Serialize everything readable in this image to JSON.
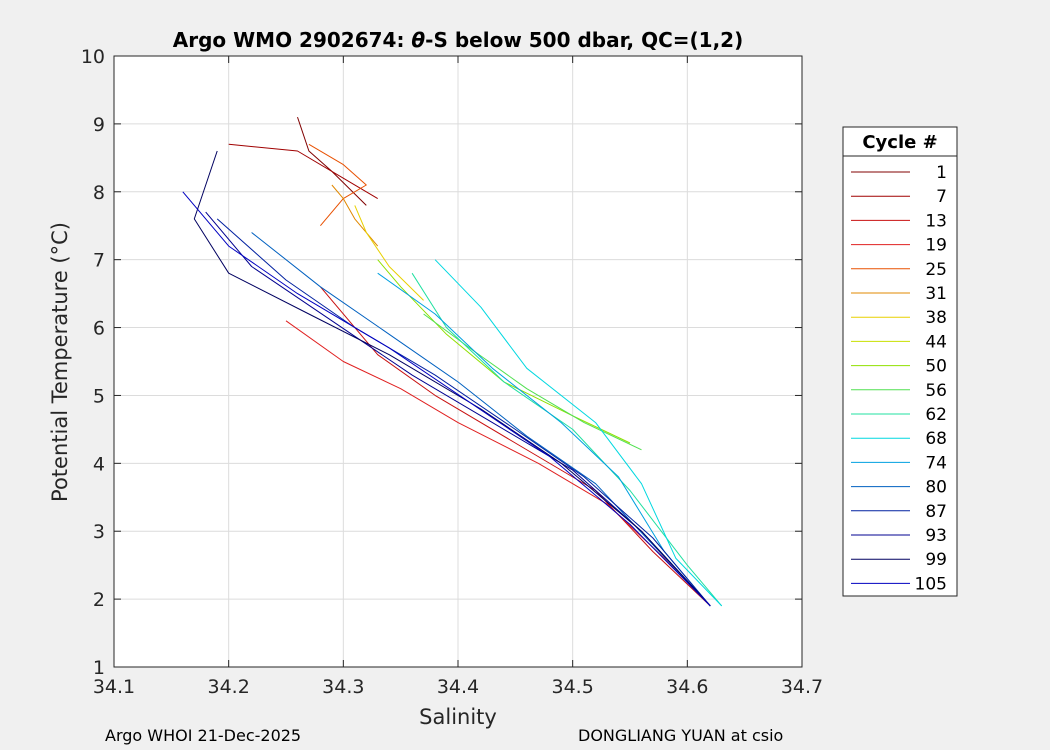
{
  "chart_data": {
    "type": "line",
    "title": "Argo WMO 2902674: θ-S below 500 dbar,  QC=(1,2)",
    "title_prefix": "Argo WMO 2902674: ",
    "title_theta": "θ",
    "title_suffix": "-S below 500 dbar,  QC=(1,2)",
    "xlabel": "Salinity",
    "ylabel": "Potential Temperature (°C)",
    "xlim": [
      34.1,
      34.7
    ],
    "ylim": [
      1,
      10
    ],
    "xticks": [
      "34.1",
      "34.2",
      "34.3",
      "34.4",
      "34.5",
      "34.6",
      "34.7"
    ],
    "yticks": [
      "1",
      "2",
      "3",
      "4",
      "5",
      "6",
      "7",
      "8",
      "9",
      "10"
    ],
    "grid": true,
    "legend_title": "Cycle #",
    "legend_position": "outside-right",
    "series": [
      {
        "name": "1",
        "color": "#800000"
      },
      {
        "name": "7",
        "color": "#a00000"
      },
      {
        "name": "13",
        "color": "#c81010"
      },
      {
        "name": "19",
        "color": "#e02020"
      },
      {
        "name": "25",
        "color": "#e85000"
      },
      {
        "name": "31",
        "color": "#e08800"
      },
      {
        "name": "38",
        "color": "#e8d000"
      },
      {
        "name": "44",
        "color": "#c8e000"
      },
      {
        "name": "50",
        "color": "#90e000"
      },
      {
        "name": "56",
        "color": "#50e050"
      },
      {
        "name": "62",
        "color": "#20e0a0"
      },
      {
        "name": "68",
        "color": "#00d8e0"
      },
      {
        "name": "74",
        "color": "#00a0e0"
      },
      {
        "name": "80",
        "color": "#0060c0"
      },
      {
        "name": "87",
        "color": "#0020a0"
      },
      {
        "name": "93",
        "color": "#000090"
      },
      {
        "name": "99",
        "color": "#000060"
      },
      {
        "name": "105",
        "color": "#0000c0"
      }
    ],
    "curves": [
      {
        "color": "#800000",
        "x": [
          34.32,
          34.29,
          34.27,
          34.26
        ],
        "y": [
          7.8,
          8.3,
          8.6,
          9.1
        ]
      },
      {
        "color": "#c81010",
        "x": [
          34.62,
          34.57,
          34.52,
          34.45,
          34.38,
          34.33,
          34.28
        ],
        "y": [
          1.9,
          2.7,
          3.6,
          4.3,
          5.0,
          5.6,
          6.6
        ]
      },
      {
        "color": "#e02020",
        "x": [
          34.62,
          34.58,
          34.53,
          34.47,
          34.4,
          34.35,
          34.3,
          34.25
        ],
        "y": [
          1.9,
          2.6,
          3.4,
          4.0,
          4.6,
          5.1,
          5.5,
          6.1
        ]
      },
      {
        "color": "#a00000",
        "x": [
          34.2,
          34.26,
          34.3,
          34.33
        ],
        "y": [
          8.7,
          8.6,
          8.2,
          7.9
        ]
      },
      {
        "color": "#e85000",
        "x": [
          34.28,
          34.3,
          34.32,
          34.3,
          34.27
        ],
        "y": [
          7.5,
          7.9,
          8.1,
          8.4,
          8.7
        ]
      },
      {
        "color": "#e08800",
        "x": [
          34.33,
          34.31,
          34.3,
          34.29
        ],
        "y": [
          7.2,
          7.6,
          7.9,
          8.1
        ]
      },
      {
        "color": "#e8d000",
        "x": [
          34.37,
          34.34,
          34.32,
          34.31
        ],
        "y": [
          6.4,
          6.9,
          7.4,
          7.8
        ]
      },
      {
        "color": "#90e000",
        "x": [
          34.55,
          34.5,
          34.44,
          34.39,
          34.35,
          34.33
        ],
        "y": [
          4.3,
          4.7,
          5.2,
          5.9,
          6.6,
          7.0
        ]
      },
      {
        "color": "#50e050",
        "x": [
          34.56,
          34.51,
          34.46,
          34.41,
          34.37
        ],
        "y": [
          4.2,
          4.6,
          5.1,
          5.7,
          6.2
        ]
      },
      {
        "color": "#20e0a0",
        "x": [
          34.63,
          34.6,
          34.55,
          34.5,
          34.44,
          34.39,
          34.36
        ],
        "y": [
          1.9,
          2.5,
          3.6,
          4.5,
          5.2,
          6.0,
          6.8
        ]
      },
      {
        "color": "#00d8e0",
        "x": [
          34.63,
          34.59,
          34.56,
          34.52,
          34.46,
          34.42,
          34.38
        ],
        "y": [
          1.9,
          2.6,
          3.7,
          4.6,
          5.4,
          6.3,
          7.0
        ]
      },
      {
        "color": "#00a0e0",
        "x": [
          34.62,
          34.58,
          34.54,
          34.49,
          34.43,
          34.38,
          34.33
        ],
        "y": [
          1.9,
          2.7,
          3.8,
          4.6,
          5.4,
          6.2,
          6.8
        ]
      },
      {
        "color": "#0060c0",
        "x": [
          34.62,
          34.57,
          34.52,
          34.46,
          34.4,
          34.34,
          34.28,
          34.22
        ],
        "y": [
          1.9,
          2.8,
          3.7,
          4.4,
          5.2,
          5.9,
          6.6,
          7.4
        ]
      },
      {
        "color": "#0020a0",
        "x": [
          34.62,
          34.57,
          34.51,
          34.45,
          34.38,
          34.31,
          34.25,
          34.19
        ],
        "y": [
          1.9,
          2.9,
          3.8,
          4.5,
          5.3,
          6.0,
          6.7,
          7.6
        ]
      },
      {
        "color": "#000090",
        "x": [
          34.62,
          34.56,
          34.5,
          34.43,
          34.36,
          34.29,
          34.22,
          34.18
        ],
        "y": [
          1.9,
          3.0,
          3.9,
          4.6,
          5.3,
          6.1,
          6.9,
          7.7
        ]
      },
      {
        "color": "#000060",
        "x": [
          34.62,
          34.56,
          34.49,
          34.42,
          34.34,
          34.27,
          34.2,
          34.17,
          34.19
        ],
        "y": [
          1.9,
          3.0,
          4.0,
          4.8,
          5.6,
          6.2,
          6.8,
          7.6,
          8.6
        ]
      },
      {
        "color": "#0000c0",
        "x": [
          34.62,
          34.55,
          34.48,
          34.41,
          34.34,
          34.26,
          34.2,
          34.16
        ],
        "y": [
          1.9,
          3.1,
          4.1,
          4.9,
          5.7,
          6.5,
          7.2,
          8.0
        ]
      }
    ]
  },
  "footer": {
    "left": "Argo WHOI 21-Dec-2025",
    "right": "DONGLIANG YUAN at csio"
  }
}
